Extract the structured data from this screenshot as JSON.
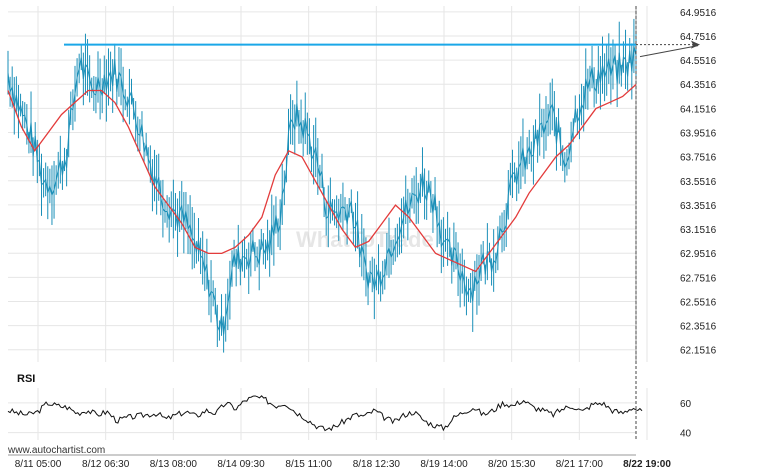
{
  "chart_data": [
    {
      "type": "line",
      "instrument_note": "candlestick-style price series with moving average",
      "x_labels": [
        "8/11 05:00",
        "8/12 06:30",
        "8/13 08:00",
        "8/14 09:30",
        "8/15 11:00",
        "8/18 12:30",
        "8/19 14:00",
        "8/20 15:30",
        "8/21 17:00",
        "8/22 19:00"
      ],
      "y_ticks": [
        "64.9516",
        "64.7516",
        "64.5516",
        "64.3516",
        "64.1516",
        "63.9516",
        "63.7516",
        "63.5516",
        "63.3516",
        "63.1516",
        "62.9516",
        "62.7516",
        "62.5516",
        "62.3516",
        "62.1516"
      ],
      "ylim": [
        62.05,
        65.0
      ],
      "price": [
        64.45,
        64.15,
        63.9,
        63.55,
        63.55,
        63.8,
        64.55,
        64.3,
        64.4,
        64.45,
        64.3,
        64.05,
        63.7,
        63.45,
        63.3,
        63.2,
        62.95,
        62.7,
        62.3,
        62.85,
        62.95,
        62.95,
        63.0,
        63.3,
        64.1,
        64.0,
        63.75,
        63.3,
        63.3,
        63.35,
        62.85,
        62.7,
        62.95,
        63.2,
        63.35,
        63.55,
        63.4,
        62.95,
        62.85,
        62.65,
        62.85,
        62.95,
        63.3,
        63.65,
        63.75,
        63.95,
        64.1,
        63.7,
        64.15,
        64.35,
        64.45,
        64.45,
        64.5,
        64.6
      ],
      "ma": [
        64.3,
        64.0,
        63.8,
        63.95,
        64.1,
        64.2,
        64.3,
        64.3,
        64.2,
        64.0,
        63.75,
        63.5,
        63.35,
        63.2,
        63.0,
        62.95,
        62.95,
        63.0,
        63.1,
        63.25,
        63.6,
        63.8,
        63.75,
        63.55,
        63.35,
        63.15,
        63.0,
        63.05,
        63.2,
        63.35,
        63.25,
        63.1,
        62.95,
        62.9,
        62.85,
        62.8,
        62.95,
        63.1,
        63.25,
        63.45,
        63.6,
        63.75,
        63.85,
        64.0,
        64.15,
        64.2,
        64.25,
        64.35
      ],
      "resistance_level": 64.68,
      "colors": {
        "price": "#1a8fb8",
        "ma": "#e33b3b",
        "resistance": "#1aa7e8",
        "grid": "#e6e6e6",
        "axis": "#999999"
      },
      "grid": true
    },
    {
      "type": "line",
      "title": "RSI",
      "y_ticks": [
        "60",
        "40"
      ],
      "ylim": [
        35,
        70
      ],
      "values": [
        55,
        53,
        52,
        54,
        60,
        58,
        57,
        53,
        55,
        52,
        54,
        48,
        50,
        51,
        52,
        53,
        49,
        52,
        54,
        51,
        55,
        53,
        60,
        56,
        62,
        64,
        62,
        58,
        60,
        54,
        50,
        45,
        42,
        44,
        48,
        52,
        51,
        55,
        50,
        47,
        52,
        54,
        48,
        45,
        43,
        50,
        54,
        57,
        52,
        55,
        60,
        58,
        62,
        57,
        55,
        52,
        56,
        58,
        54,
        59,
        60,
        55,
        53,
        57,
        54
      ],
      "color": "#111111"
    }
  ],
  "footer": {
    "credit": "www.autochartist.com"
  },
  "watermark": "WhatToTrade"
}
